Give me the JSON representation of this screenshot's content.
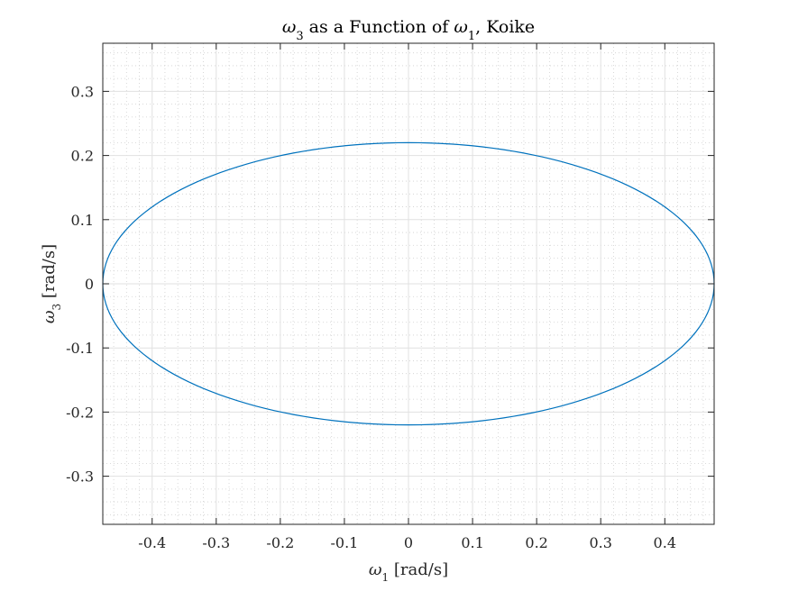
{
  "chart_data": {
    "type": "line",
    "title": {
      "prefix_symbol": "ω",
      "prefix_subscript": "3",
      "middle": " as a Function of ",
      "suffix_symbol": "ω",
      "suffix_subscript": "1",
      "suffix": ", Koike"
    },
    "xlabel": {
      "symbol": "ω",
      "subscript": "1",
      "unit": " [rad/s]"
    },
    "ylabel": {
      "symbol": "ω",
      "subscript": "3",
      "unit": " [rad/s]"
    },
    "xlim": [
      -0.477,
      0.477
    ],
    "ylim": [
      -0.375,
      0.375
    ],
    "xticks": [
      -0.4,
      -0.3,
      -0.2,
      -0.1,
      0,
      0.1,
      0.2,
      0.3,
      0.4
    ],
    "xtick_labels": [
      "-0.4",
      "-0.3",
      "-0.2",
      "-0.1",
      "0",
      "0.1",
      "0.2",
      "0.3",
      "0.4"
    ],
    "yticks": [
      0.3,
      0.2,
      0.1,
      0,
      -0.1,
      -0.2,
      -0.3
    ],
    "ytick_labels": [
      "0.3",
      "0.2",
      "0.1",
      "0",
      "-0.1",
      "-0.2",
      "-0.3"
    ],
    "grid": true,
    "minor_grid": true,
    "series": [
      {
        "shape": "ellipse",
        "center": [
          0,
          0
        ],
        "x_semi_axis": 0.477,
        "y_semi_axis": 0.22,
        "points": 181,
        "color": "#0072bd"
      }
    ]
  }
}
